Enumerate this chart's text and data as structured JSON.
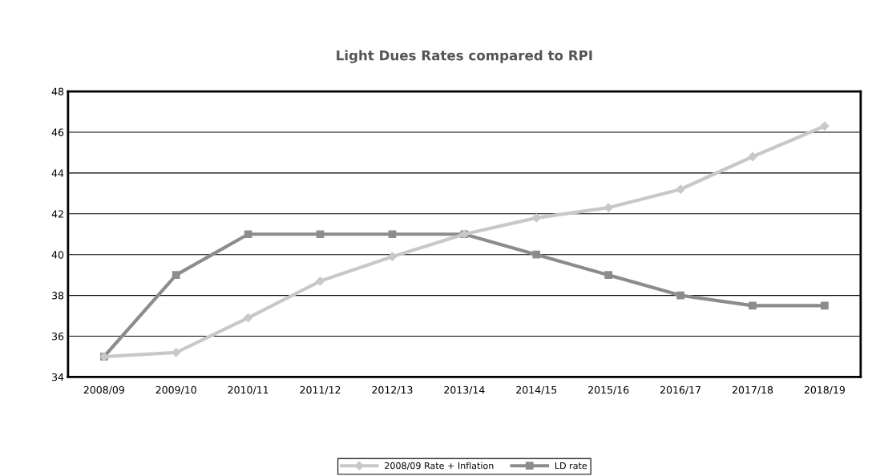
{
  "chart_data": {
    "type": "line",
    "title": "Light Dues Rates compared to RPI",
    "categories": [
      "2008/09",
      "2009/10",
      "2010/11",
      "2011/12",
      "2012/13",
      "2013/14",
      "2014/15",
      "2015/16",
      "2016/17",
      "2017/18",
      "2018/19"
    ],
    "series": [
      {
        "name": "2008/09 Rate + Inflation",
        "color": "#c8c8c8",
        "marker": "diamond",
        "values": [
          35.0,
          35.2,
          36.9,
          38.7,
          39.9,
          41.0,
          41.8,
          42.3,
          43.2,
          44.8,
          46.3
        ]
      },
      {
        "name": "LD rate",
        "color": "#8c8c8c",
        "marker": "square",
        "values": [
          35,
          39,
          41,
          41,
          41,
          41,
          40,
          39,
          38,
          37.5,
          37.5
        ]
      }
    ],
    "ylim": [
      34,
      48
    ],
    "yticks": [
      34,
      36,
      38,
      40,
      42,
      44,
      46,
      48
    ],
    "grid": "y",
    "legend": "bottom",
    "line_style": "solid"
  }
}
